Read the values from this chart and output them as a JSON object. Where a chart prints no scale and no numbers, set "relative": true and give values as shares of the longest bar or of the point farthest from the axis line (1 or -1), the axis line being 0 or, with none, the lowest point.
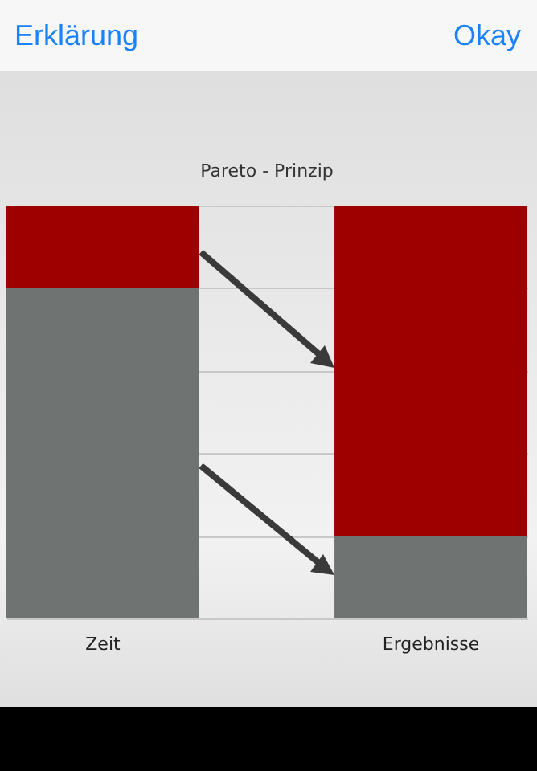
{
  "chart_data": {
    "type": "bar",
    "title": "Pareto - Prinzip",
    "relative": true,
    "stacked": true,
    "grid": "y",
    "legend": false,
    "categories": [
      "Zeit",
      "Ergebnisse"
    ],
    "series": [
      {
        "color": "#6f7371",
        "values": [
          0.8,
          0.2
        ]
      },
      {
        "color": "#9e0000",
        "values": [
          0.2,
          0.8
        ]
      }
    ],
    "annotations": [
      "Erklärung",
      "Okay"
    ]
  }
}
